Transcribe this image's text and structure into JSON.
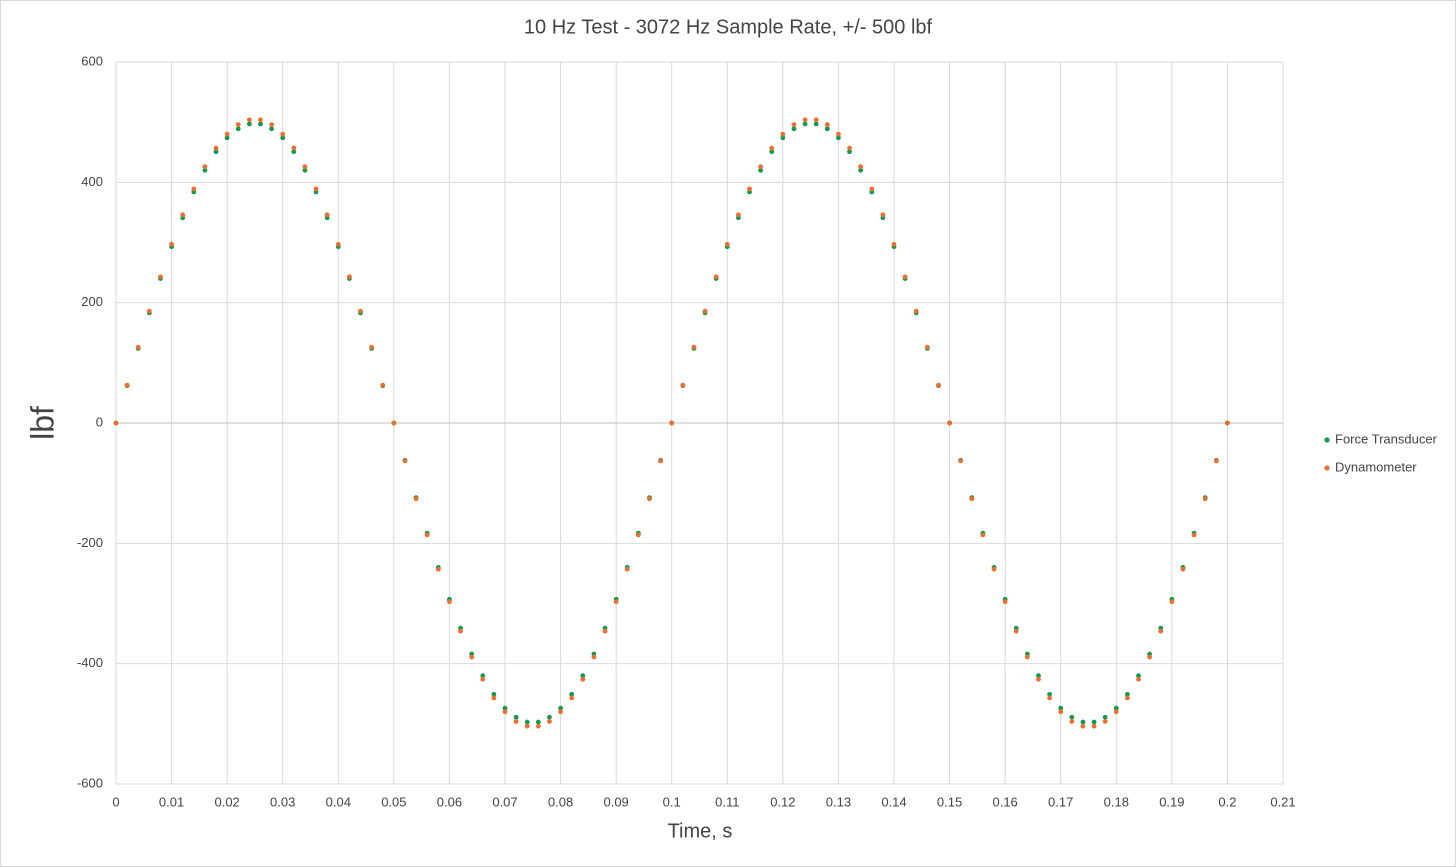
{
  "chart_data": {
    "type": "scatter",
    "title": "10 Hz Test - 3072 Hz Sample Rate, +/- 500 lbf",
    "x_label": "Time, s",
    "y_label": "lbf",
    "xlim": [
      0,
      0.21
    ],
    "ylim": [
      -600,
      600
    ],
    "xticks": [
      0,
      0.01,
      0.02,
      0.03,
      0.04,
      0.05,
      0.06,
      0.07,
      0.08,
      0.09,
      0.1,
      0.11,
      0.12,
      0.13,
      0.14,
      0.15,
      0.16,
      0.17,
      0.18,
      0.19,
      0.2,
      0.21
    ],
    "yticks": [
      -600,
      -400,
      -200,
      0,
      200,
      400,
      600
    ],
    "grid": true,
    "legend": "right",
    "x": [
      0,
      0.002,
      0.004,
      0.006,
      0.008,
      0.01,
      0.012,
      0.014,
      0.016,
      0.018,
      0.02,
      0.022,
      0.024,
      0.026,
      0.028,
      0.03,
      0.032,
      0.034,
      0.036,
      0.038,
      0.04,
      0.042,
      0.044,
      0.046,
      0.048,
      0.05,
      0.052,
      0.054,
      0.056,
      0.058,
      0.06,
      0.062,
      0.064,
      0.066,
      0.068,
      0.07,
      0.072,
      0.074,
      0.076,
      0.078,
      0.08,
      0.082,
      0.084,
      0.086,
      0.088,
      0.09,
      0.092,
      0.094,
      0.096,
      0.098,
      0.1,
      0.102,
      0.104,
      0.106,
      0.108,
      0.11,
      0.112,
      0.114,
      0.116,
      0.118,
      0.12,
      0.122,
      0.124,
      0.126,
      0.128,
      0.13,
      0.132,
      0.134,
      0.136,
      0.138,
      0.14,
      0.142,
      0.144,
      0.146,
      0.148,
      0.15,
      0.152,
      0.154,
      0.156,
      0.158,
      0.16,
      0.162,
      0.164,
      0.166,
      0.168,
      0.17,
      0.172,
      0.174,
      0.176,
      0.178,
      0.18,
      0.182,
      0.184,
      0.186,
      0.188,
      0.19,
      0.192,
      0.194,
      0.196,
      0.198,
      0.2
    ],
    "series": [
      {
        "name": "Force Transducer",
        "color": "#0f9a50",
        "values": [
          0,
          62,
          124,
          183,
          240,
          293,
          341,
          384,
          420,
          451,
          474,
          489,
          497,
          497,
          489,
          474,
          451,
          420,
          384,
          341,
          293,
          240,
          183,
          124,
          62,
          0,
          -62,
          -124,
          -183,
          -240,
          -293,
          -341,
          -384,
          -420,
          -451,
          -474,
          -489,
          -497,
          -497,
          -489,
          -474,
          -451,
          -420,
          -384,
          -341,
          -293,
          -240,
          -183,
          -124,
          -62,
          0,
          62,
          124,
          183,
          240,
          293,
          341,
          384,
          420,
          451,
          474,
          489,
          497,
          497,
          489,
          474,
          451,
          420,
          384,
          341,
          293,
          240,
          183,
          124,
          62,
          0,
          -62,
          -124,
          -183,
          -240,
          -293,
          -341,
          -384,
          -420,
          -451,
          -474,
          -489,
          -497,
          -497,
          -489,
          -474,
          -451,
          -420,
          -384,
          -341,
          -293,
          -240,
          -183,
          -124,
          -62,
          0
        ]
      },
      {
        "name": "Dynamometer",
        "color": "#ee6f2d",
        "values": [
          0,
          63,
          126,
          186,
          243,
          297,
          346,
          389,
          426,
          457,
          480,
          496,
          504,
          504,
          496,
          480,
          457,
          426,
          389,
          346,
          297,
          243,
          186,
          126,
          63,
          0,
          -63,
          -126,
          -186,
          -243,
          -297,
          -346,
          -389,
          -426,
          -457,
          -480,
          -496,
          -504,
          -504,
          -496,
          -480,
          -457,
          -426,
          -389,
          -346,
          -297,
          -243,
          -186,
          -126,
          -63,
          0,
          63,
          126,
          186,
          243,
          297,
          346,
          389,
          426,
          457,
          480,
          496,
          504,
          504,
          496,
          480,
          457,
          426,
          389,
          346,
          297,
          243,
          186,
          126,
          63,
          0,
          -63,
          -126,
          -186,
          -243,
          -297,
          -346,
          -389,
          -426,
          -457,
          -480,
          -496,
          -504,
          -504,
          -496,
          -480,
          -457,
          -426,
          -389,
          -346,
          -297,
          -243,
          -186,
          -126,
          -63,
          0
        ]
      }
    ]
  }
}
